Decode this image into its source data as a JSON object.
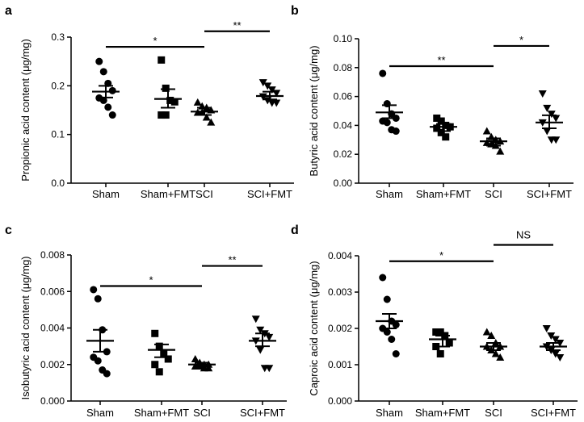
{
  "chart_data": [
    {
      "type": "scatter",
      "panel_label": "a",
      "ylabel": "Propionic acid content (μg/mg)",
      "categories": [
        "Sham",
        "Sham+FMT",
        "SCI",
        "SCI+FMT"
      ],
      "ylim": [
        0,
        0.3
      ],
      "yticks": [
        "0.0",
        "0.1",
        "0.2",
        "0.3"
      ],
      "yticks_values": [
        0,
        0.1,
        0.2,
        0.3
      ],
      "series": [
        {
          "marker": "circle",
          "points": [
            0.25,
            0.229,
            0.205,
            0.19,
            0.175,
            0.17,
            0.156,
            0.14
          ],
          "mean": 0.188,
          "sem_low": 0.176,
          "sem_high": 0.2
        },
        {
          "marker": "square",
          "points": [
            0.253,
            0.195,
            0.17,
            0.167,
            0.14,
            0.14
          ],
          "mean": 0.173,
          "sem_low": 0.155,
          "sem_high": 0.193
        },
        {
          "marker": "triangle-up",
          "points": [
            0.166,
            0.158,
            0.155,
            0.15,
            0.145,
            0.145,
            0.135,
            0.125
          ],
          "mean": 0.147,
          "sem_low": 0.14,
          "sem_high": 0.155
        },
        {
          "marker": "triangle-down",
          "points": [
            0.207,
            0.2,
            0.192,
            0.185,
            0.178,
            0.17,
            0.165,
            0.165
          ],
          "mean": 0.179,
          "sem_low": 0.172,
          "sem_high": 0.188
        }
      ],
      "significance": [
        {
          "from": 0,
          "to": 2,
          "y": 0.28,
          "label": "*"
        },
        {
          "from": 2,
          "to": 3,
          "y": 0.312,
          "label": "**"
        }
      ]
    },
    {
      "type": "scatter",
      "panel_label": "b",
      "ylabel": "Butyric acid content (μg/mg)",
      "categories": [
        "Sham",
        "Sham+FMT",
        "SCI",
        "SCI+FMT"
      ],
      "ylim": [
        0,
        0.1
      ],
      "yticks": [
        "0.00",
        "0.02",
        "0.04",
        "0.06",
        "0.08",
        "0.10"
      ],
      "yticks_values": [
        0,
        0.02,
        0.04,
        0.06,
        0.08,
        0.1
      ],
      "series": [
        {
          "marker": "circle",
          "points": [
            0.076,
            0.055,
            0.048,
            0.045,
            0.043,
            0.042,
            0.037,
            0.036
          ],
          "mean": 0.049,
          "sem_low": 0.045,
          "sem_high": 0.054
        },
        {
          "marker": "square",
          "points": [
            0.045,
            0.043,
            0.04,
            0.039,
            0.038,
            0.035,
            0.032
          ],
          "mean": 0.039,
          "sem_low": 0.036,
          "sem_high": 0.041
        },
        {
          "marker": "triangle-up",
          "points": [
            0.036,
            0.032,
            0.03,
            0.029,
            0.028,
            0.027,
            0.026,
            0.022
          ],
          "mean": 0.029,
          "sem_low": 0.026,
          "sem_high": 0.031
        },
        {
          "marker": "triangle-down",
          "points": [
            0.062,
            0.052,
            0.048,
            0.045,
            0.042,
            0.036,
            0.03,
            0.03
          ],
          "mean": 0.042,
          "sem_low": 0.038,
          "sem_high": 0.047
        },
        {
          "marker": "none",
          "points": [],
          "mean": null,
          "sem_low": null,
          "sem_high": null
        }
      ],
      "significance": [
        {
          "from": 0,
          "to": 2,
          "y": 0.081,
          "label": "**"
        },
        {
          "from": 2,
          "to": 3,
          "y": 0.095,
          "label": "*"
        }
      ]
    },
    {
      "type": "scatter",
      "panel_label": "c",
      "ylabel": "Isobutyric acid content (μg/mg)",
      "categories": [
        "Sham",
        "Sham+FMT",
        "SCI",
        "SCI+FMT"
      ],
      "ylim": [
        0,
        0.008
      ],
      "yticks": [
        "0.000",
        "0.002",
        "0.004",
        "0.006",
        "0.008"
      ],
      "yticks_values": [
        0,
        0.002,
        0.004,
        0.006,
        0.008
      ],
      "series": [
        {
          "marker": "circle",
          "points": [
            0.0061,
            0.0056,
            0.0039,
            0.0027,
            0.0024,
            0.0022,
            0.0017,
            0.0015
          ],
          "mean": 0.0033,
          "sem_low": 0.0027,
          "sem_high": 0.0039
        },
        {
          "marker": "square",
          "points": [
            0.0037,
            0.003,
            0.0026,
            0.0023,
            0.002,
            0.0016
          ],
          "mean": 0.0028,
          "sem_low": 0.0024,
          "sem_high": 0.0031
        },
        {
          "marker": "triangle-up",
          "points": [
            0.0023,
            0.0021,
            0.002,
            0.002,
            0.0019,
            0.0019,
            0.0018,
            0.0018
          ],
          "mean": 0.002,
          "sem_low": 0.0019,
          "sem_high": 0.0021
        },
        {
          "marker": "triangle-down",
          "points": [
            0.0045,
            0.0039,
            0.0037,
            0.0035,
            0.0033,
            0.0028,
            0.0018,
            0.0018
          ],
          "mean": 0.0033,
          "sem_low": 0.003,
          "sem_high": 0.0037
        }
      ],
      "significance": [
        {
          "from": 0,
          "to": 2,
          "y": 0.0063,
          "label": "*"
        },
        {
          "from": 2,
          "to": 3,
          "y": 0.0074,
          "label": "**"
        }
      ]
    },
    {
      "type": "scatter",
      "panel_label": "d",
      "ylabel": "Caproic acid content (μg/mg)",
      "categories": [
        "Sham",
        "Sham+FMT",
        "SCI",
        "SCI+FMT"
      ],
      "ylim": [
        0,
        0.004
      ],
      "yticks": [
        "0.000",
        "0.001",
        "0.002",
        "0.003",
        "0.004"
      ],
      "yticks_values": [
        0,
        0.001,
        0.002,
        0.003,
        0.004
      ],
      "series": [
        {
          "marker": "circle",
          "points": [
            0.0034,
            0.0028,
            0.0022,
            0.0021,
            0.002,
            0.0019,
            0.0017,
            0.0013
          ],
          "mean": 0.0022,
          "sem_low": 0.002,
          "sem_high": 0.0024
        },
        {
          "marker": "square",
          "points": [
            0.0019,
            0.0019,
            0.0018,
            0.0016,
            0.0015,
            0.0013
          ],
          "mean": 0.0017,
          "sem_low": 0.0015,
          "sem_high": 0.0018
        },
        {
          "marker": "triangle-up",
          "points": [
            0.0019,
            0.0018,
            0.0016,
            0.0015,
            0.0015,
            0.0014,
            0.0013,
            0.0012
          ],
          "mean": 0.0015,
          "sem_low": 0.0014,
          "sem_high": 0.0016
        },
        {
          "marker": "triangle-down",
          "points": [
            0.002,
            0.0018,
            0.0017,
            0.0016,
            0.0015,
            0.0014,
            0.0013,
            0.0012
          ],
          "mean": 0.0015,
          "sem_low": 0.0014,
          "sem_high": 0.0016
        }
      ],
      "significance": [
        {
          "from": 0,
          "to": 2,
          "y": 0.00385,
          "label": "*"
        },
        {
          "from": 2,
          "to": 3,
          "y": 0.0043,
          "label": "NS"
        }
      ]
    }
  ]
}
